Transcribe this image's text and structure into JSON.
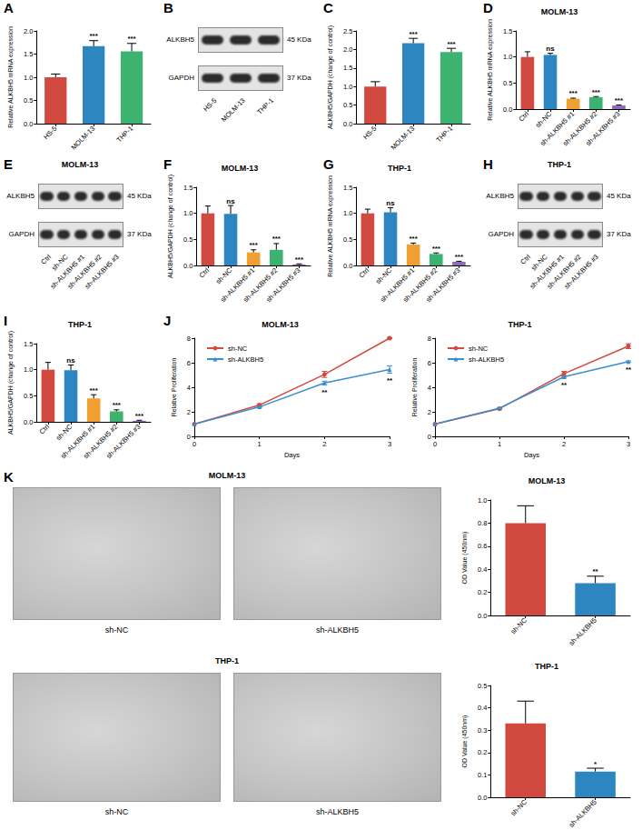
{
  "chart_data": [
    {
      "panel": "A",
      "type": "bar",
      "grid": false,
      "categories": [
        "HS-5",
        "MOLM-13",
        "THP-1"
      ],
      "values": [
        1.0,
        1.67,
        1.56
      ],
      "errors": [
        0.07,
        0.12,
        0.17
      ],
      "significance": [
        null,
        "***",
        "***"
      ],
      "colors": [
        "#d1493f",
        "#2e86c1",
        "#3cb371"
      ],
      "ylabel": "Relative ALKBH5 mRNA expression",
      "ylim": [
        0,
        2
      ],
      "yticks": [
        {
          "value": 0,
          "label": "0.0"
        },
        0.5,
        {
          "value": 1,
          "label": "1.0"
        },
        1.5,
        {
          "value": 2,
          "label": "2.0"
        }
      ]
    },
    {
      "panel": "B",
      "type": "blot",
      "lanes": [
        "HS-5",
        "MOLM-13",
        "THP-1"
      ],
      "bands": [
        {
          "name": "ALKBH5",
          "size": "45 KDa"
        },
        {
          "name": "GAPDH",
          "size": "37 KDa"
        }
      ]
    },
    {
      "panel": "C",
      "type": "bar",
      "grid": false,
      "categories": [
        "HS-5",
        "MOLM-13",
        "THP-1"
      ],
      "values": [
        1.0,
        2.17,
        1.93
      ],
      "errors": [
        0.13,
        0.13,
        0.1
      ],
      "significance": [
        null,
        "***",
        "***"
      ],
      "colors": [
        "#d1493f",
        "#2e86c1",
        "#3cb371"
      ],
      "ylabel": "ALKBH5/GAPDH (change of control)",
      "ylim": [
        0,
        2.5
      ],
      "yticks": [
        {
          "value": 0,
          "label": "0.0"
        },
        0.5,
        {
          "value": 1,
          "label": "1.0"
        },
        1.5,
        {
          "value": 2,
          "label": "2.0"
        },
        2.5
      ]
    },
    {
      "panel": "D",
      "type": "bar",
      "grid": false,
      "title": "MOLM-13",
      "categories": [
        "Ctrl",
        "sh-NC",
        "sh-ALKBH5 #1",
        "sh-ALKBH5 #2",
        "sh-ALKBH5 #3"
      ],
      "values": [
        1.0,
        1.04,
        0.2,
        0.23,
        0.07
      ],
      "errors": [
        0.1,
        0.03,
        0.01,
        0.01,
        0.01
      ],
      "significance": [
        null,
        "ns",
        "***",
        "***",
        "***"
      ],
      "colors": [
        "#d1493f",
        "#2e86c1",
        "#f0a030",
        "#3cb371",
        "#8e6bb5"
      ],
      "ylabel": "Relative ALKBH5 mRNA expression",
      "ylim": [
        0,
        1.5
      ],
      "yticks": [
        {
          "value": 0,
          "label": "0.0"
        },
        0.5,
        {
          "value": 1,
          "label": "1.0"
        },
        1.5
      ]
    },
    {
      "panel": "E",
      "type": "blot",
      "title": "MOLM-13",
      "lanes": [
        "Ctrl",
        "sh-NC",
        "sh-ALKBH5 #1",
        "sh-ALKBH5 #2",
        "sh-ALKBH5 #3"
      ],
      "bands": [
        {
          "name": "ALKBH5",
          "size": "45 KDa"
        },
        {
          "name": "GAPDH",
          "size": "37 KDa"
        }
      ]
    },
    {
      "panel": "F",
      "type": "bar",
      "grid": false,
      "title": "MOLM-13",
      "categories": [
        "Ctrl",
        "sh-NC",
        "sh-ALKBH5 #1",
        "sh-ALKBH5 #2",
        "sh-ALKBH5 #3"
      ],
      "values": [
        1.0,
        0.99,
        0.25,
        0.3,
        0.02
      ],
      "errors": [
        0.14,
        0.16,
        0.05,
        0.12,
        0.01
      ],
      "significance": [
        null,
        "ns",
        "***",
        "***",
        "***"
      ],
      "colors": [
        "#d1493f",
        "#2e86c1",
        "#f0a030",
        "#3cb371",
        "#8e6bb5"
      ],
      "ylabel": "ALKBH5/GAPDH (change of control)",
      "ylim": [
        0,
        1.5
      ],
      "yticks": [
        {
          "value": 0,
          "label": "0.0"
        },
        0.5,
        {
          "value": 1,
          "label": "1.0"
        },
        1.5
      ]
    },
    {
      "panel": "G",
      "type": "bar",
      "grid": false,
      "title": "THP-1",
      "categories": [
        "Ctrl",
        "sh-NC",
        "sh-ALKBH5 #1",
        "sh-ALKBH5 #2",
        "sh-ALKBH5 #3"
      ],
      "values": [
        1.0,
        1.02,
        0.4,
        0.22,
        0.07
      ],
      "errors": [
        0.08,
        0.09,
        0.03,
        0.02,
        0.01
      ],
      "significance": [
        null,
        "ns",
        "***",
        "***",
        "***"
      ],
      "colors": [
        "#d1493f",
        "#2e86c1",
        "#f0a030",
        "#3cb371",
        "#8e6bb5"
      ],
      "ylabel": "Relative ALKBH5 mRNA expression",
      "ylim": [
        0,
        1.5
      ],
      "yticks": [
        {
          "value": 0,
          "label": "0.0"
        },
        0.5,
        {
          "value": 1,
          "label": "1.0"
        },
        1.5
      ]
    },
    {
      "panel": "H",
      "type": "blot",
      "title": "THP-1",
      "lanes": [
        "Ctrl",
        "sh-NC",
        "sh-ALKBH5 #1",
        "sh-ALKBH5 #2",
        "sh-ALKBH5 #3"
      ],
      "bands": [
        {
          "name": "ALKBH5",
          "size": "45 KDa"
        },
        {
          "name": "GAPDH",
          "size": "37 KDa"
        }
      ]
    },
    {
      "panel": "I",
      "type": "bar",
      "grid": false,
      "title": "THP-1",
      "categories": [
        "Ctrl",
        "sh-NC",
        "sh-ALKBH5 #1",
        "sh-ALKBH5 #2",
        "sh-ALKBH5 #3"
      ],
      "values": [
        1.0,
        0.99,
        0.45,
        0.2,
        0.02
      ],
      "errors": [
        0.14,
        0.1,
        0.07,
        0.03,
        0.01
      ],
      "significance": [
        null,
        "ns",
        "***",
        "***",
        "***"
      ],
      "colors": [
        "#d1493f",
        "#2e86c1",
        "#f0a030",
        "#3cb371",
        "#8e6bb5"
      ],
      "ylabel": "ALKBH5/GAPDH (change of control)",
      "ylim": [
        0,
        1.5
      ],
      "yticks": [
        {
          "value": 0,
          "label": "0.0"
        },
        0.5,
        {
          "value": 1,
          "label": "1.0"
        },
        1.5
      ]
    },
    {
      "panel": "J",
      "type": "line",
      "grid": false,
      "title": "MOLM-13",
      "legend": "upper left",
      "xlabel": "Days",
      "ylabel": "Relative Proliferation",
      "x": [
        0,
        1,
        2,
        3
      ],
      "xlim": [
        0,
        3
      ],
      "xticks": [
        0,
        1,
        2,
        3
      ],
      "ylim": [
        0,
        8
      ],
      "yticks": [
        0,
        2,
        4,
        6,
        8
      ],
      "series": [
        {
          "name": "sh-NC",
          "color": "#d1493f",
          "marker": "circle",
          "values": [
            1.0,
            2.55,
            5.05,
            8.0
          ],
          "errors": [
            0,
            0.1,
            0.25,
            0.05
          ]
        },
        {
          "name": "sh-ALKBH5",
          "color": "#3a8fd0",
          "marker": "triangle",
          "values": [
            1.0,
            2.4,
            4.35,
            5.45
          ],
          "errors": [
            0,
            0.05,
            0.15,
            0.3
          ],
          "significance": [
            null,
            null,
            "**",
            "**"
          ]
        }
      ]
    },
    {
      "type": "line",
      "grid": false,
      "title": "THP-1",
      "legend": "upper left",
      "xlabel": "Days",
      "ylabel": "Relative Proliferation",
      "x": [
        0,
        1,
        2,
        3
      ],
      "xlim": [
        0,
        3
      ],
      "xticks": [
        0,
        1,
        2,
        3
      ],
      "ylim": [
        0,
        8
      ],
      "yticks": [
        0,
        2,
        4,
        6,
        8
      ],
      "series": [
        {
          "name": "sh-NC",
          "color": "#d1493f",
          "marker": "circle",
          "values": [
            1.0,
            2.25,
            5.1,
            7.35
          ],
          "errors": [
            0,
            0.05,
            0.2,
            0.2
          ]
        },
        {
          "name": "sh-ALKBH5",
          "color": "#3a8fd0",
          "marker": "triangle",
          "values": [
            1.0,
            2.3,
            4.85,
            6.1
          ],
          "errors": [
            0,
            0.05,
            0.1,
            0.05
          ],
          "significance": [
            null,
            null,
            "**",
            "**"
          ]
        }
      ]
    },
    {
      "panel": "K",
      "type": "micrograph",
      "title": "MOLM-13",
      "labels": [
        "sh-NC",
        "sh-ALKBH5"
      ]
    },
    {
      "type": "bar",
      "grid": false,
      "title": "MOLM-13",
      "categories": [
        "sh-NC",
        "sh-ALKBH5"
      ],
      "values": [
        0.8,
        0.28
      ],
      "errors": [
        0.15,
        0.06
      ],
      "significance": [
        null,
        "**"
      ],
      "colors": [
        "#d1493f",
        "#2e86c1"
      ],
      "ylabel": "OD Value (450nm)",
      "ylim": [
        0,
        1
      ],
      "yticks": [
        {
          "value": 0,
          "label": "0.0"
        },
        0.2,
        0.4,
        0.6,
        0.8,
        {
          "value": 1,
          "label": "1.0"
        }
      ]
    },
    {
      "type": "micrograph",
      "title": "THP-1",
      "labels": [
        "sh-NC",
        "sh-ALKBH5"
      ]
    },
    {
      "type": "bar",
      "grid": false,
      "title": "THP-1",
      "categories": [
        "sh-NC",
        "sh-ALKBH5"
      ],
      "values": [
        0.33,
        0.115
      ],
      "errors": [
        0.1,
        0.015
      ],
      "significance": [
        null,
        "*"
      ],
      "colors": [
        "#d1493f",
        "#2e86c1"
      ],
      "ylabel": "OD Value (450nm)",
      "ylim": [
        0,
        0.5
      ],
      "yticks": [
        {
          "value": 0,
          "label": "0.0"
        },
        0.1,
        0.2,
        0.3,
        0.4,
        0.5
      ]
    }
  ]
}
